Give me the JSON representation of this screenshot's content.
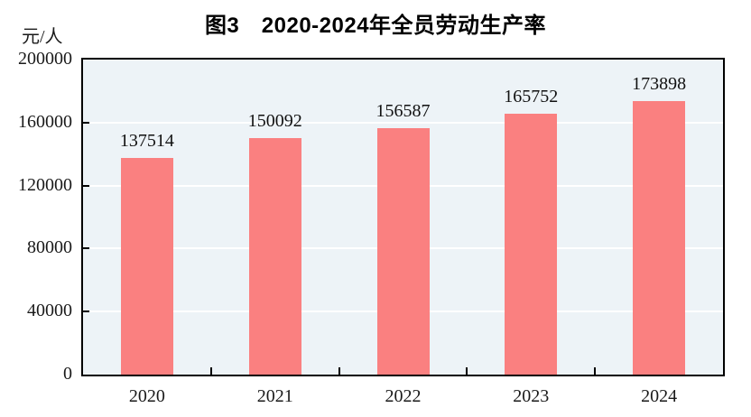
{
  "chart_data": {
    "type": "bar",
    "title": "图3　2020-2024年全员劳动生产率",
    "ylabel": "元/人",
    "xlabel": "",
    "categories": [
      "2020",
      "2021",
      "2022",
      "2023",
      "2024"
    ],
    "values": [
      137514,
      150092,
      156587,
      165752,
      173898
    ],
    "value_labels": [
      "137514",
      "150092",
      "156587",
      "165752",
      "173898"
    ],
    "ylim": [
      0,
      200000
    ],
    "y_ticks": [
      0,
      40000,
      80000,
      120000,
      160000,
      200000
    ],
    "y_tick_labels": [
      "0",
      "40000",
      "80000",
      "120000",
      "160000",
      "200000"
    ],
    "legend": "none",
    "grid": "horizontal",
    "colors": {
      "bar_fill": "#FA8080",
      "plot_background": "#EDF3F7",
      "gridline": "#FFFFFF",
      "axis_frame": "#000000",
      "text": "#111111",
      "page_background": "#FFFFFF"
    }
  }
}
